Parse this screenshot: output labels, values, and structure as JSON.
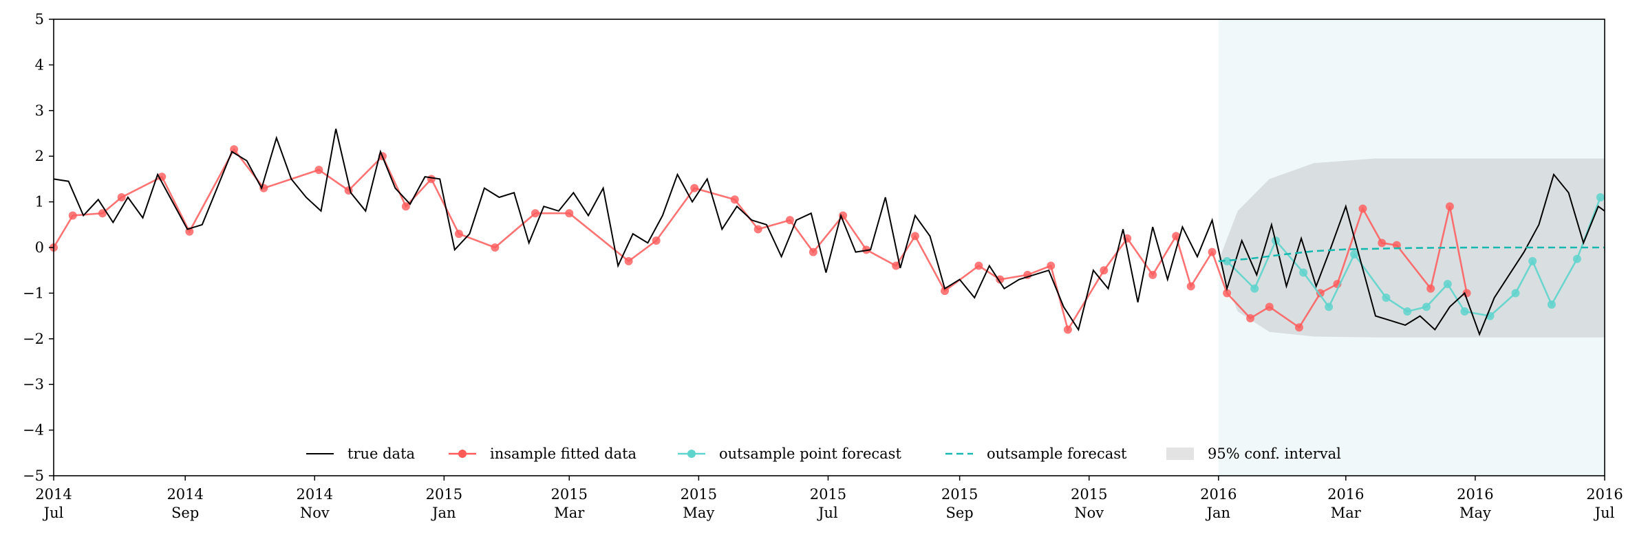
{
  "chart_data": {
    "type": "line",
    "title": "",
    "xlabel": "",
    "ylabel": "",
    "xlim": [
      "2014-07-01",
      "2016-07-01"
    ],
    "ylim": [
      -5,
      5
    ],
    "grid": false,
    "legend_placement": "lower-center",
    "yticks": [
      "−5",
      "−4",
      "−3",
      "−2",
      "−1",
      "0",
      "1",
      "2",
      "3",
      "4",
      "5"
    ],
    "xticks": [
      {
        "date": "2014-07-01",
        "year": "2014",
        "month": "Jul"
      },
      {
        "date": "2014-09-01",
        "year": "2014",
        "month": "Sep"
      },
      {
        "date": "2014-11-01",
        "year": "2014",
        "month": "Nov"
      },
      {
        "date": "2015-01-01",
        "year": "2015",
        "month": "Jan"
      },
      {
        "date": "2015-03-01",
        "year": "2015",
        "month": "Mar"
      },
      {
        "date": "2015-05-01",
        "year": "2015",
        "month": "May"
      },
      {
        "date": "2015-07-01",
        "year": "2015",
        "month": "Jul"
      },
      {
        "date": "2015-09-01",
        "year": "2015",
        "month": "Sep"
      },
      {
        "date": "2015-11-01",
        "year": "2015",
        "month": "Nov"
      },
      {
        "date": "2016-01-01",
        "year": "2016",
        "month": "Jan"
      },
      {
        "date": "2016-03-01",
        "year": "2016",
        "month": "Mar"
      },
      {
        "date": "2016-05-01",
        "year": "2016",
        "month": "May"
      },
      {
        "date": "2016-07-01",
        "year": "2016",
        "month": "Jul"
      }
    ],
    "forecast_region": {
      "start": "2016-01-01",
      "end": "2016-07-01"
    },
    "series": [
      {
        "name": "true data",
        "color": "#000000",
        "points": [
          [
            "2014-07-01",
            1.5
          ],
          [
            "2014-07-08",
            1.45
          ],
          [
            "2014-07-15",
            0.7
          ],
          [
            "2014-07-22",
            1.05
          ],
          [
            "2014-07-29",
            0.55
          ],
          [
            "2014-08-05",
            1.1
          ],
          [
            "2014-08-12",
            0.65
          ],
          [
            "2014-08-19",
            1.6
          ],
          [
            "2014-08-26",
            1.0
          ],
          [
            "2014-09-02",
            0.4
          ],
          [
            "2014-09-09",
            0.5
          ],
          [
            "2014-09-16",
            1.3
          ],
          [
            "2014-09-23",
            2.1
          ],
          [
            "2014-09-30",
            1.9
          ],
          [
            "2014-10-07",
            1.3
          ],
          [
            "2014-10-14",
            2.4
          ],
          [
            "2014-10-21",
            1.5
          ],
          [
            "2014-10-28",
            1.1
          ],
          [
            "2014-11-04",
            0.8
          ],
          [
            "2014-11-11",
            2.6
          ],
          [
            "2014-11-18",
            1.2
          ],
          [
            "2014-11-25",
            0.8
          ],
          [
            "2014-12-02",
            2.1
          ],
          [
            "2014-12-09",
            1.3
          ],
          [
            "2014-12-16",
            0.95
          ],
          [
            "2014-12-23",
            1.55
          ],
          [
            "2014-12-30",
            1.5
          ],
          [
            "2015-01-06",
            -0.05
          ],
          [
            "2015-01-13",
            0.3
          ],
          [
            "2015-01-20",
            1.3
          ],
          [
            "2015-01-27",
            1.1
          ],
          [
            "2015-02-03",
            1.2
          ],
          [
            "2015-02-10",
            0.1
          ],
          [
            "2015-02-17",
            0.9
          ],
          [
            "2015-02-24",
            0.8
          ],
          [
            "2015-03-03",
            1.2
          ],
          [
            "2015-03-10",
            0.7
          ],
          [
            "2015-03-17",
            1.3
          ],
          [
            "2015-03-24",
            -0.4
          ],
          [
            "2015-03-31",
            0.3
          ],
          [
            "2015-04-07",
            0.1
          ],
          [
            "2015-04-14",
            0.7
          ],
          [
            "2015-04-21",
            1.6
          ],
          [
            "2015-04-28",
            1.0
          ],
          [
            "2015-05-05",
            1.5
          ],
          [
            "2015-05-12",
            0.4
          ],
          [
            "2015-05-19",
            0.9
          ],
          [
            "2015-05-26",
            0.6
          ],
          [
            "2015-06-02",
            0.5
          ],
          [
            "2015-06-09",
            -0.2
          ],
          [
            "2015-06-16",
            0.6
          ],
          [
            "2015-06-23",
            0.75
          ],
          [
            "2015-06-30",
            -0.55
          ],
          [
            "2015-07-07",
            0.7
          ],
          [
            "2015-07-14",
            -0.1
          ],
          [
            "2015-07-21",
            -0.05
          ],
          [
            "2015-07-28",
            1.1
          ],
          [
            "2015-08-04",
            -0.45
          ],
          [
            "2015-08-11",
            0.7
          ],
          [
            "2015-08-18",
            0.25
          ],
          [
            "2015-08-25",
            -0.9
          ],
          [
            "2015-09-01",
            -0.7
          ],
          [
            "2015-09-08",
            -1.1
          ],
          [
            "2015-09-15",
            -0.4
          ],
          [
            "2015-09-22",
            -0.9
          ],
          [
            "2015-09-29",
            -0.7
          ],
          [
            "2015-10-06",
            -0.6
          ],
          [
            "2015-10-13",
            -0.5
          ],
          [
            "2015-10-20",
            -1.3
          ],
          [
            "2015-10-27",
            -1.8
          ],
          [
            "2015-11-03",
            -0.5
          ],
          [
            "2015-11-10",
            -0.9
          ],
          [
            "2015-11-17",
            0.4
          ],
          [
            "2015-11-24",
            -1.2
          ],
          [
            "2015-12-01",
            0.45
          ],
          [
            "2015-12-08",
            -0.7
          ],
          [
            "2015-12-15",
            0.45
          ],
          [
            "2015-12-22",
            -0.2
          ],
          [
            "2015-12-29",
            0.6
          ],
          [
            "2016-01-05",
            -0.9
          ],
          [
            "2016-01-12",
            0.15
          ],
          [
            "2016-01-19",
            -0.6
          ],
          [
            "2016-01-26",
            0.5
          ],
          [
            "2016-02-02",
            -0.85
          ],
          [
            "2016-02-09",
            0.2
          ],
          [
            "2016-02-16",
            -0.85
          ],
          [
            "2016-02-23",
            0.0
          ],
          [
            "2016-03-01",
            0.9
          ],
          [
            "2016-03-08",
            -0.3
          ],
          [
            "2016-03-15",
            -1.5
          ],
          [
            "2016-03-22",
            -1.6
          ],
          [
            "2016-03-29",
            -1.7
          ],
          [
            "2016-04-05",
            -1.5
          ],
          [
            "2016-04-12",
            -1.8
          ],
          [
            "2016-04-19",
            -1.3
          ],
          [
            "2016-04-26",
            -1.0
          ],
          [
            "2016-05-03",
            -1.9
          ],
          [
            "2016-05-10",
            -1.1
          ],
          [
            "2016-05-17",
            -0.6
          ],
          [
            "2016-05-24",
            -0.1
          ],
          [
            "2016-05-31",
            0.5
          ],
          [
            "2016-06-07",
            1.6
          ],
          [
            "2016-06-14",
            1.2
          ],
          [
            "2016-06-21",
            0.1
          ],
          [
            "2016-06-28",
            0.9
          ],
          [
            "2016-07-01",
            0.8
          ]
        ]
      },
      {
        "name": "insample fitted data",
        "color": "#ff5a5a",
        "points": [
          [
            "2014-07-01",
            0.0
          ],
          [
            "2014-07-10",
            0.7
          ],
          [
            "2014-07-24",
            0.75
          ],
          [
            "2014-08-02",
            1.1
          ],
          [
            "2014-08-21",
            1.55
          ],
          [
            "2014-09-03",
            0.35
          ],
          [
            "2014-09-24",
            2.15
          ],
          [
            "2014-10-08",
            1.3
          ],
          [
            "2014-11-03",
            1.7
          ],
          [
            "2014-11-17",
            1.25
          ],
          [
            "2014-12-03",
            2.0
          ],
          [
            "2014-12-14",
            0.9
          ],
          [
            "2014-12-26",
            1.5
          ],
          [
            "2015-01-08",
            0.3
          ],
          [
            "2015-01-25",
            0.0
          ],
          [
            "2015-02-13",
            0.75
          ],
          [
            "2015-03-01",
            0.75
          ],
          [
            "2015-03-29",
            -0.3
          ],
          [
            "2015-04-11",
            0.15
          ],
          [
            "2015-04-29",
            1.3
          ],
          [
            "2015-05-18",
            1.05
          ],
          [
            "2015-05-29",
            0.4
          ],
          [
            "2015-06-13",
            0.6
          ],
          [
            "2015-06-24",
            -0.1
          ],
          [
            "2015-07-08",
            0.7
          ],
          [
            "2015-07-19",
            -0.05
          ],
          [
            "2015-08-02",
            -0.4
          ],
          [
            "2015-08-11",
            0.25
          ],
          [
            "2015-08-25",
            -0.95
          ],
          [
            "2015-09-10",
            -0.4
          ],
          [
            "2015-09-20",
            -0.7
          ],
          [
            "2015-10-03",
            -0.6
          ],
          [
            "2015-10-14",
            -0.4
          ],
          [
            "2015-10-22",
            -1.8
          ],
          [
            "2015-11-08",
            -0.5
          ],
          [
            "2015-11-19",
            0.2
          ],
          [
            "2015-12-01",
            -0.6
          ],
          [
            "2015-12-12",
            0.25
          ],
          [
            "2015-12-19",
            -0.85
          ],
          [
            "2015-12-29",
            -0.1
          ],
          [
            "2016-01-05",
            -1.0
          ],
          [
            "2016-01-16",
            -1.55
          ],
          [
            "2016-01-25",
            -1.3
          ],
          [
            "2016-02-08",
            -1.75
          ],
          [
            "2016-02-18",
            -1.0
          ],
          [
            "2016-02-26",
            -0.8
          ],
          [
            "2016-03-09",
            0.85
          ],
          [
            "2016-03-18",
            0.1
          ],
          [
            "2016-03-25",
            0.05
          ],
          [
            "2016-04-10",
            -0.9
          ],
          [
            "2016-04-19",
            0.9
          ],
          [
            "2016-04-27",
            -1.0
          ]
        ]
      },
      {
        "name": "outsample point forecast",
        "color": "#5fd4cc",
        "points": [
          [
            "2016-01-05",
            -0.3
          ],
          [
            "2016-01-18",
            -0.9
          ],
          [
            "2016-01-28",
            0.15
          ],
          [
            "2016-02-10",
            -0.55
          ],
          [
            "2016-02-22",
            -1.3
          ],
          [
            "2016-03-05",
            -0.15
          ],
          [
            "2016-03-20",
            -1.1
          ],
          [
            "2016-03-30",
            -1.4
          ],
          [
            "2016-04-08",
            -1.3
          ],
          [
            "2016-04-18",
            -0.8
          ],
          [
            "2016-04-26",
            -1.4
          ],
          [
            "2016-05-08",
            -1.5
          ],
          [
            "2016-05-20",
            -1.0
          ],
          [
            "2016-05-28",
            -0.3
          ],
          [
            "2016-06-06",
            -1.25
          ],
          [
            "2016-06-18",
            -0.25
          ],
          [
            "2016-06-29",
            1.1
          ]
        ]
      },
      {
        "name": "outsample forecast",
        "color": "#18b8b0",
        "points": [
          [
            "2016-01-01",
            -0.3
          ],
          [
            "2016-01-15",
            -0.25
          ],
          [
            "2016-02-01",
            -0.15
          ],
          [
            "2016-02-15",
            -0.08
          ],
          [
            "2016-03-01",
            -0.04
          ],
          [
            "2016-04-01",
            -0.01
          ],
          [
            "2016-05-01",
            0.0
          ],
          [
            "2016-06-01",
            0.0
          ],
          [
            "2016-07-01",
            0.0
          ]
        ]
      },
      {
        "name": "95% conf. interval",
        "color": "#d9dfe0",
        "upper": [
          [
            "2016-01-01",
            -0.3
          ],
          [
            "2016-01-10",
            0.8
          ],
          [
            "2016-01-25",
            1.5
          ],
          [
            "2016-02-15",
            1.85
          ],
          [
            "2016-03-15",
            1.95
          ],
          [
            "2016-07-01",
            1.95
          ]
        ],
        "lower": [
          [
            "2016-01-01",
            -0.3
          ],
          [
            "2016-01-10",
            -1.4
          ],
          [
            "2016-01-25",
            -1.85
          ],
          [
            "2016-02-15",
            -1.95
          ],
          [
            "2016-03-15",
            -1.97
          ],
          [
            "2016-07-01",
            -1.97
          ]
        ]
      }
    ]
  }
}
